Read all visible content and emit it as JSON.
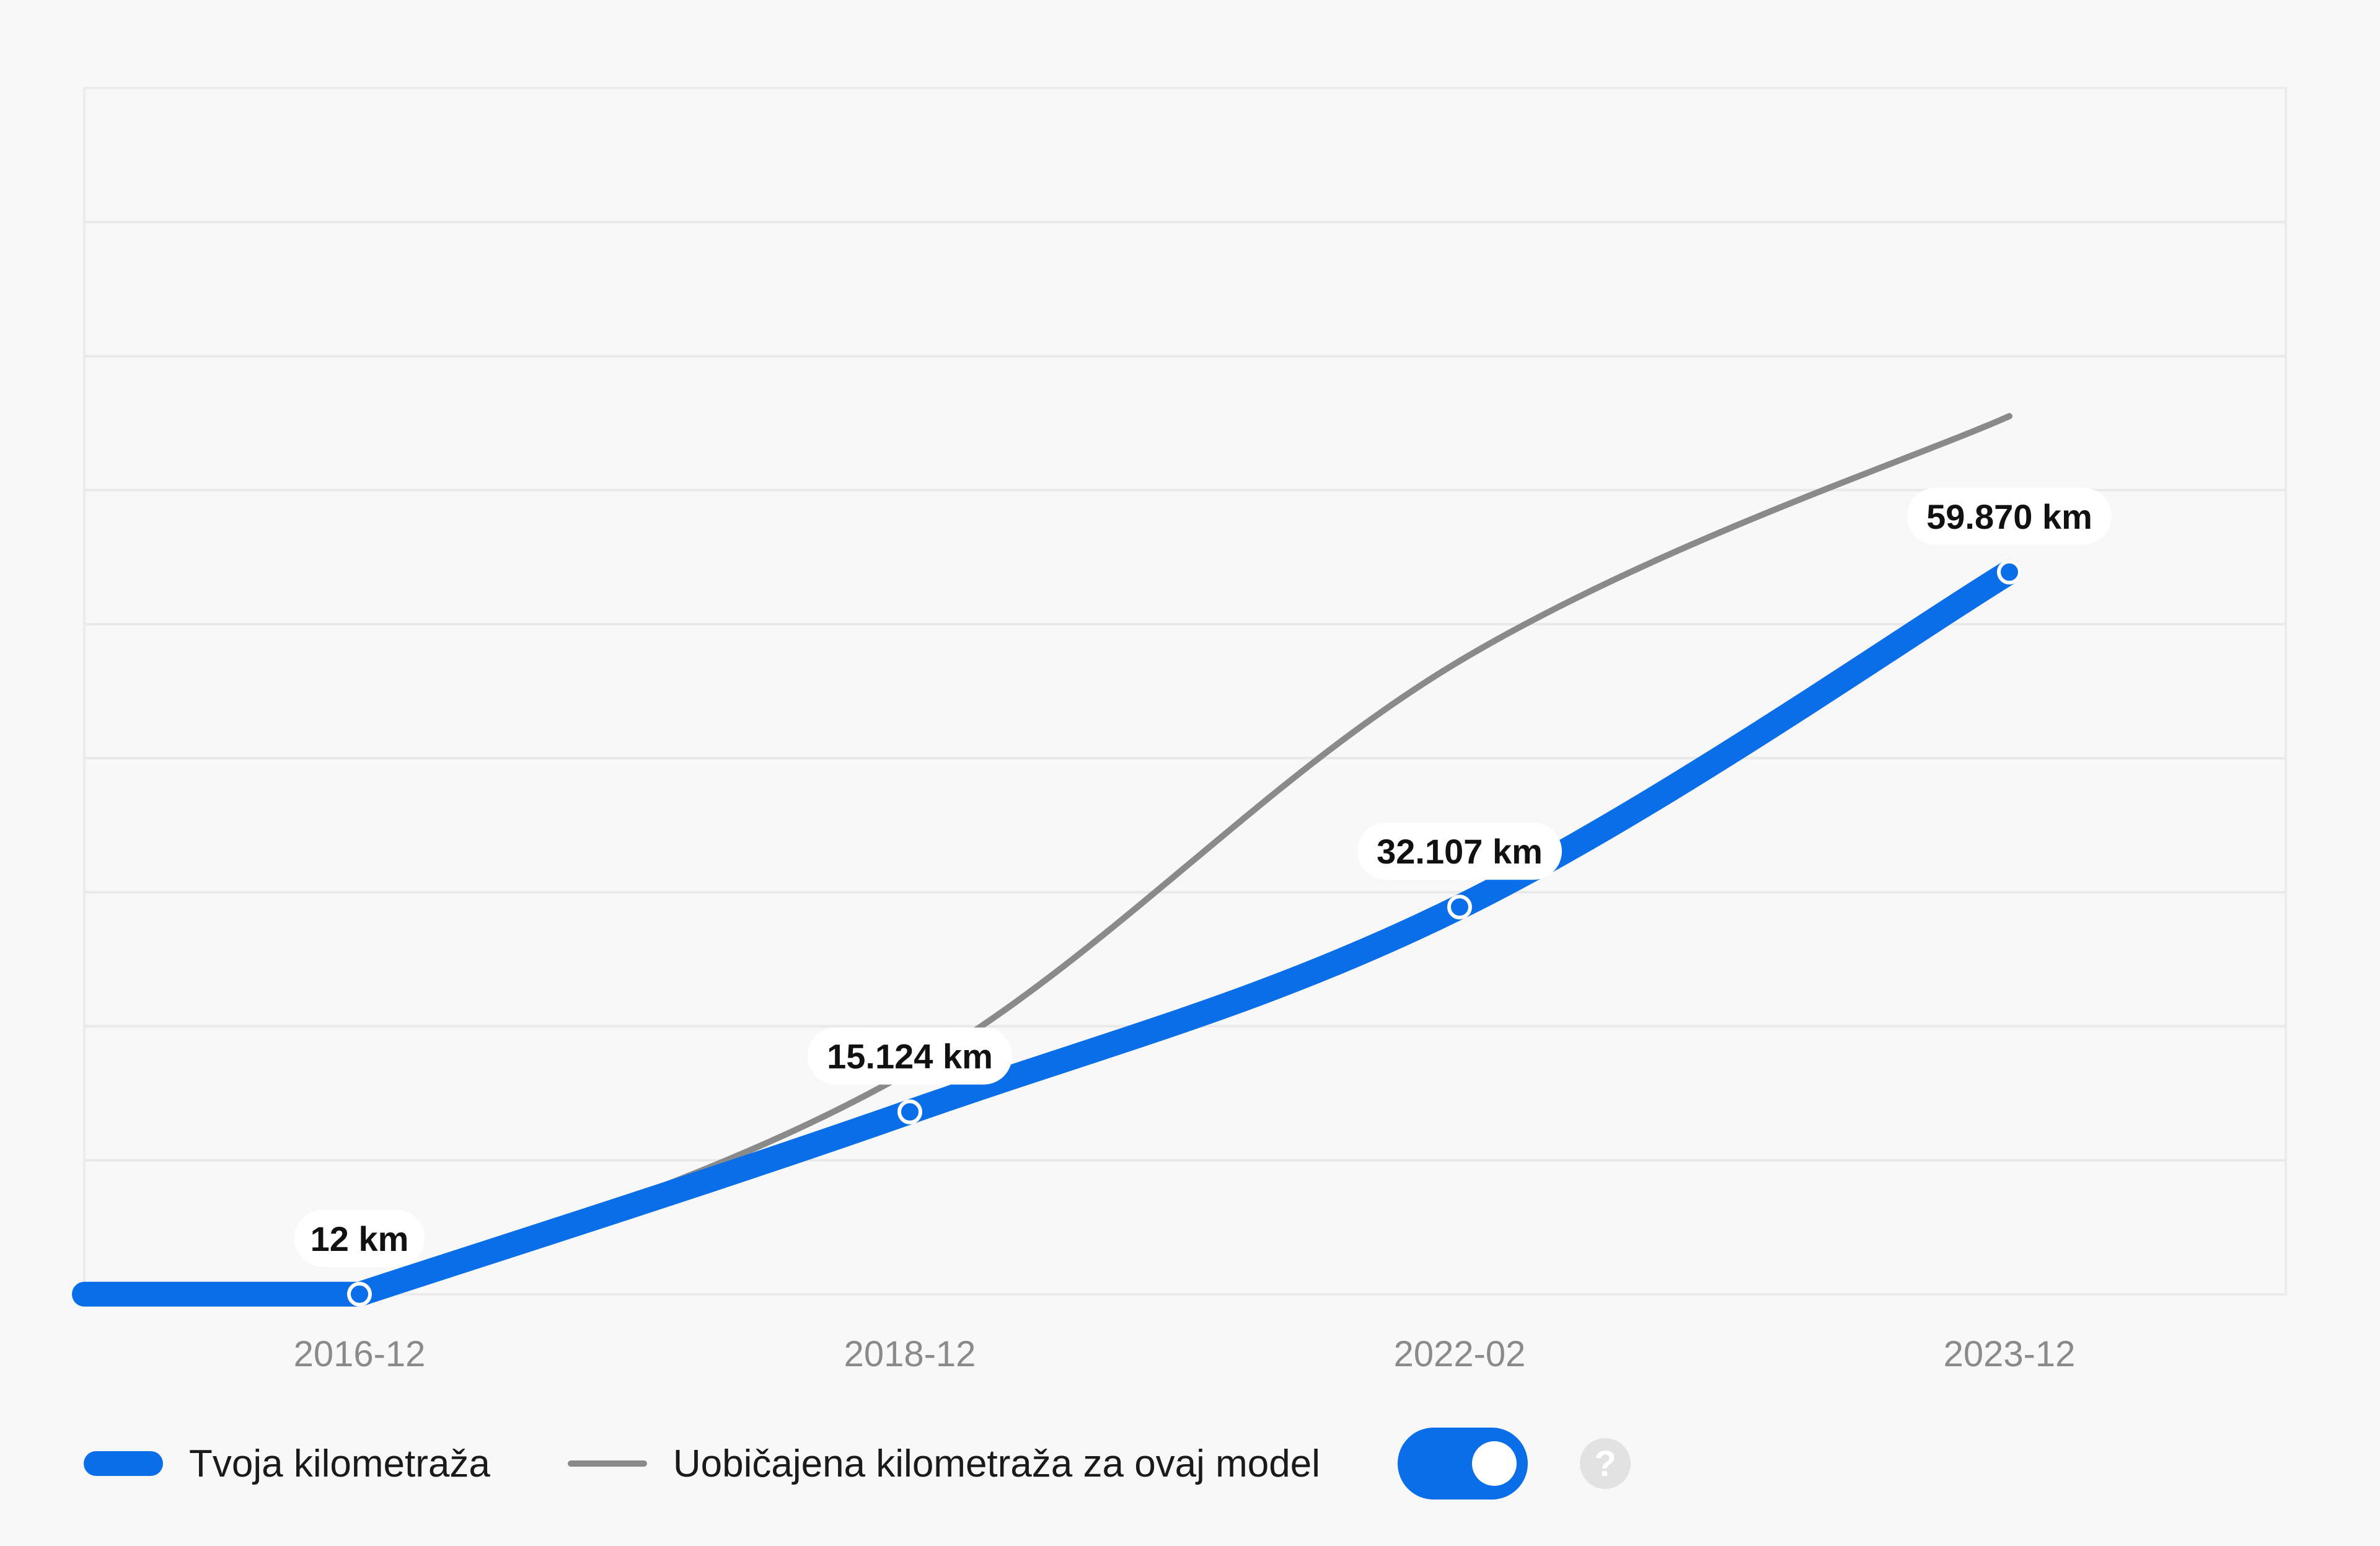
{
  "chart_data": {
    "type": "line",
    "x": [
      "2016-12",
      "2018-12",
      "2022-02",
      "2023-12"
    ],
    "series": [
      {
        "name": "Tvoja kilometraža",
        "values": [
          12,
          15124,
          32107,
          59870
        ],
        "data_labels": [
          "12 km",
          "15.124 km",
          "32.107 km",
          "59.870 km"
        ],
        "color": "#0a6ee8"
      },
      {
        "name": "Uobičajena kilometraža za ovaj model",
        "values": [
          12,
          18500,
          52500,
          72800
        ],
        "color": "#8a8a8a"
      }
    ],
    "ylim": [
      0,
      100000
    ],
    "grid": true,
    "legend_position": "bottom-left"
  },
  "toggle": {
    "on": true,
    "color": "#0a6ee8"
  },
  "help": {
    "icon": "question-mark-icon",
    "label": "?"
  }
}
